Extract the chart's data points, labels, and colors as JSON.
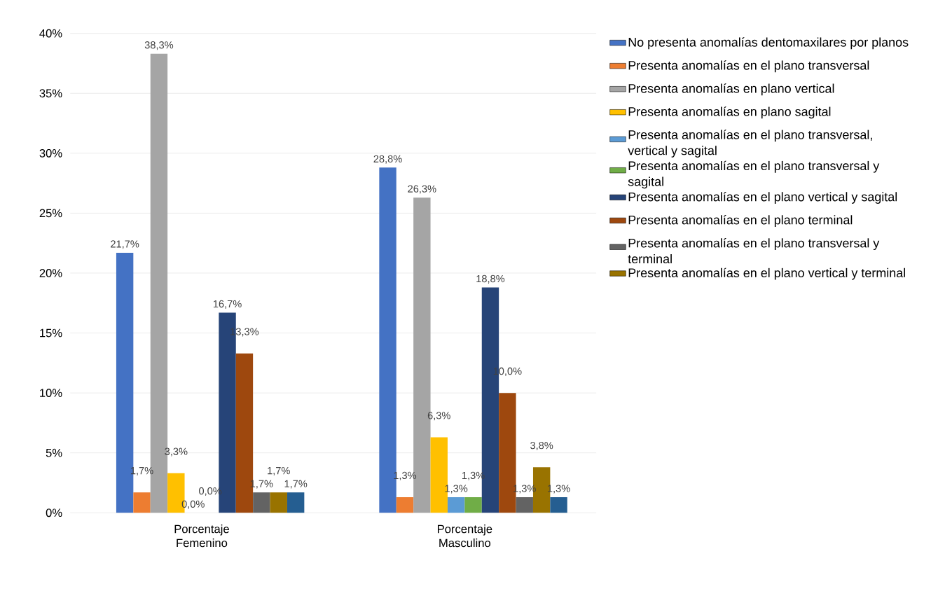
{
  "chart_data": {
    "type": "bar",
    "categories": [
      "Porcentaje Femenino",
      "Porcentaje Masculino"
    ],
    "series": [
      {
        "name": "No presenta anomalías dentomaxilares por planos",
        "color": "#4472c4",
        "values": [
          21.7,
          28.8
        ],
        "value_labels": [
          "21,7%",
          "28,8%"
        ]
      },
      {
        "name": "Presenta anomalías en el plano transversal",
        "color": "#ed7d31",
        "values": [
          1.7,
          1.3
        ],
        "value_labels": [
          "1,7%",
          "1,3%"
        ]
      },
      {
        "name": "Presenta anomalías en plano vertical",
        "color": "#a5a5a5",
        "values": [
          38.3,
          26.3
        ],
        "value_labels": [
          "38,3%",
          "26,3%"
        ]
      },
      {
        "name": "Presenta anomalías en plano sagital",
        "color": "#ffc000",
        "values": [
          3.3,
          6.3
        ],
        "value_labels": [
          "3,3%",
          "6,3%"
        ]
      },
      {
        "name": "Presenta anomalías en el plano transversal, vertical y sagital",
        "color": "#5b9bd5",
        "values": [
          0.0,
          1.3
        ],
        "value_labels": [
          "0,0%",
          "1,3%"
        ]
      },
      {
        "name": "Presenta anomalías en el plano transversal y sagital",
        "color": "#70ad47",
        "values": [
          0.0,
          1.3
        ],
        "value_labels": [
          "0,0%",
          "1,3%"
        ]
      },
      {
        "name": "Presenta anomalías en el plano vertical y sagital",
        "color": "#264478",
        "values": [
          16.7,
          18.8
        ],
        "value_labels": [
          "16,7%",
          "18,8%"
        ]
      },
      {
        "name": "Presenta anomalías en el plano terminal",
        "color": "#9e480e",
        "values": [
          13.3,
          10.0
        ],
        "value_labels": [
          "13,3%",
          "10,0%"
        ]
      },
      {
        "name": "Presenta anomalías en el plano transversal y terminal",
        "color": "#636363",
        "values": [
          1.7,
          1.3
        ],
        "value_labels": [
          "1,7%",
          "1,3%"
        ]
      },
      {
        "name": "Presenta anomalías en el plano vertical y terminal",
        "color": "#997300",
        "values": [
          1.7,
          3.8
        ],
        "value_labels": [
          "1,7%",
          "3,8%"
        ]
      },
      {
        "color": "#255e91",
        "values": [
          1.7,
          1.3
        ],
        "value_labels": [
          "1,7%",
          "1,3%"
        ]
      }
    ],
    "ylim": [
      0,
      40
    ],
    "yticks": [
      {
        "value": 0,
        "label": "0%"
      },
      {
        "value": 5,
        "label": "5%"
      },
      {
        "value": 10,
        "label": "10%"
      },
      {
        "value": 15,
        "label": "15%"
      },
      {
        "value": 20,
        "label": "20%"
      },
      {
        "value": 25,
        "label": "25%"
      },
      {
        "value": 30,
        "label": "30%"
      },
      {
        "value": 35,
        "label": "35%"
      },
      {
        "value": 40,
        "label": "40%"
      }
    ],
    "grid": "y",
    "legend": "right"
  }
}
